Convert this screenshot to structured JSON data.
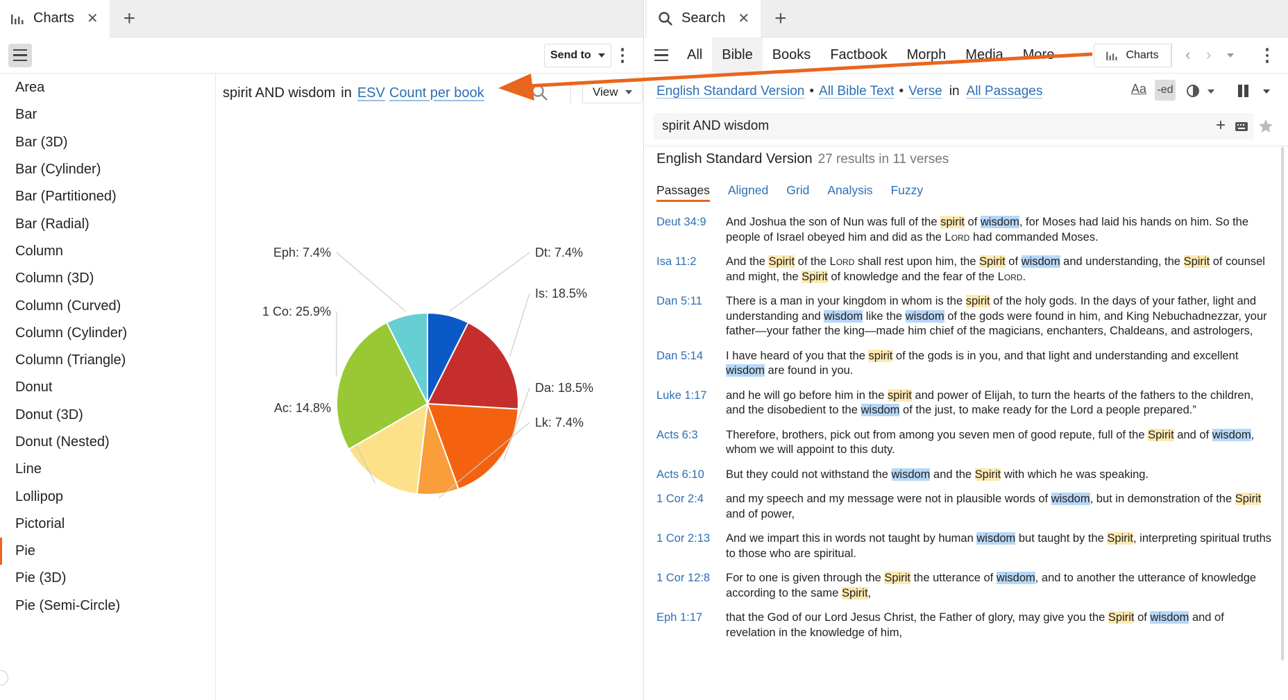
{
  "left_panel": {
    "tab_title": "Charts",
    "send_to_label": "Send to",
    "chart_types": [
      "Area",
      "Bar",
      "Bar (3D)",
      "Bar (Cylinder)",
      "Bar (Partitioned)",
      "Bar (Radial)",
      "Column",
      "Column (3D)",
      "Column (Curved)",
      "Column (Cylinder)",
      "Column (Triangle)",
      "Donut",
      "Donut (3D)",
      "Donut (Nested)",
      "Line",
      "Lollipop",
      "Pictorial",
      "Pie",
      "Pie (3D)",
      "Pie (Semi-Circle)"
    ],
    "selected_chart_type": "Pie",
    "query_text": "spirit AND wisdom",
    "query_in": "in",
    "query_version": "ESV",
    "query_mode": "Count per book",
    "view_label": "View"
  },
  "chart_data": {
    "type": "pie",
    "title": "",
    "slices": [
      {
        "label": "Dt: 7.4%",
        "category": "Dt",
        "value": 7.4,
        "color": "#0b59c7"
      },
      {
        "label": "Is: 18.5%",
        "category": "Is",
        "value": 18.5,
        "color": "#c62e2e"
      },
      {
        "label": "Da: 18.5%",
        "category": "Da",
        "value": 18.5,
        "color": "#f5620f"
      },
      {
        "label": "Lk: 7.4%",
        "category": "Lk",
        "value": 7.4,
        "color": "#f99e3a"
      },
      {
        "label": "Ac: 14.8%",
        "category": "Ac",
        "value": 14.8,
        "color": "#fde08a"
      },
      {
        "label": "1 Co: 25.9%",
        "category": "1 Co",
        "value": 25.9,
        "color": "#98c935"
      },
      {
        "label": "Eph: 7.4%",
        "category": "Eph",
        "value": 7.4,
        "color": "#66cfd3"
      }
    ]
  },
  "right_panel": {
    "tab_title": "Search",
    "nav_tabs": [
      "All",
      "Bible",
      "Books",
      "Factbook",
      "Morph",
      "Media",
      "More"
    ],
    "active_nav_tab": "Bible",
    "charts_button": "Charts",
    "options": {
      "version": "English Standard Version",
      "scope": "All Bible Text",
      "unit": "Verse",
      "in": "in",
      "range": "All Passages",
      "text_icon_label": "Aa"
    },
    "search_query": "spirit AND wisdom",
    "results_header": {
      "version": "English Standard Version",
      "count": "27 results in 11 verses"
    },
    "result_tabs": [
      "Passages",
      "Aligned",
      "Grid",
      "Analysis",
      "Fuzzy"
    ],
    "active_result_tab": "Passages",
    "results": [
      {
        "ref": "Deut 34:9",
        "parts": [
          [
            "t",
            "And Joshua the son of Nun was full of the "
          ],
          [
            "s",
            "spirit"
          ],
          [
            "t",
            " of "
          ],
          [
            "w",
            "wisdom"
          ],
          [
            "t",
            ", for Moses had laid his hands on him. So the people of Israel obeyed him and did as the "
          ],
          [
            "c",
            "Lord"
          ],
          [
            "t",
            " had commanded Moses."
          ]
        ]
      },
      {
        "ref": "Isa 11:2",
        "parts": [
          [
            "t",
            "And the "
          ],
          [
            "s",
            "Spirit"
          ],
          [
            "t",
            " of the "
          ],
          [
            "c",
            "Lord"
          ],
          [
            "t",
            " shall rest upon him, the "
          ],
          [
            "s",
            "Spirit"
          ],
          [
            "t",
            " of "
          ],
          [
            "w",
            "wisdom"
          ],
          [
            "t",
            " and understanding, the "
          ],
          [
            "s",
            "Spirit"
          ],
          [
            "t",
            " of counsel and might, the "
          ],
          [
            "s",
            "Spirit"
          ],
          [
            "t",
            " of knowledge and the fear of the "
          ],
          [
            "c",
            "Lord"
          ],
          [
            "t",
            "."
          ]
        ]
      },
      {
        "ref": "Dan 5:11",
        "parts": [
          [
            "t",
            "There is a man in your kingdom in whom is the "
          ],
          [
            "s",
            "spirit"
          ],
          [
            "t",
            " of the holy gods. In the days of your father, light and understanding and "
          ],
          [
            "w",
            "wisdom"
          ],
          [
            "t",
            " like the "
          ],
          [
            "w",
            "wisdom"
          ],
          [
            "t",
            " of the gods were found in him, and King Nebuchadnezzar, your father—your father the king—made him chief of the magicians, enchanters, Chaldeans, and astrologers,"
          ]
        ]
      },
      {
        "ref": "Dan 5:14",
        "parts": [
          [
            "t",
            "I have heard of you that the "
          ],
          [
            "s",
            "spirit"
          ],
          [
            "t",
            " of the gods is in you, and that light and understanding and excellent "
          ],
          [
            "w",
            "wisdom"
          ],
          [
            "t",
            " are found in you."
          ]
        ]
      },
      {
        "ref": "Luke 1:17",
        "parts": [
          [
            "t",
            "and he will go before him in the "
          ],
          [
            "s",
            "spirit"
          ],
          [
            "t",
            " and power of Elijah, to turn the hearts of the fathers to the children, and the disobedient to the "
          ],
          [
            "w",
            "wisdom"
          ],
          [
            "t",
            " of the just, to make ready for the Lord a people prepared.”"
          ]
        ]
      },
      {
        "ref": "Acts 6:3",
        "parts": [
          [
            "t",
            "Therefore, brothers, pick out from among you seven men of good repute, full of the "
          ],
          [
            "s",
            "Spirit"
          ],
          [
            "t",
            " and of "
          ],
          [
            "w",
            "wisdom"
          ],
          [
            "t",
            ", whom we will appoint to this duty."
          ]
        ]
      },
      {
        "ref": "Acts 6:10",
        "parts": [
          [
            "t",
            "But they could not withstand the "
          ],
          [
            "w",
            "wisdom"
          ],
          [
            "t",
            " and the "
          ],
          [
            "s",
            "Spirit"
          ],
          [
            "t",
            " with which he was speaking."
          ]
        ]
      },
      {
        "ref": "1 Cor 2:4",
        "parts": [
          [
            "t",
            "and my speech and my message were not in plausible words of "
          ],
          [
            "w",
            "wisdom"
          ],
          [
            "t",
            ", but in demonstration of the "
          ],
          [
            "s",
            "Spirit"
          ],
          [
            "t",
            " and of power,"
          ]
        ]
      },
      {
        "ref": "1 Cor 2:13",
        "parts": [
          [
            "t",
            "And we impart this in words not taught by human "
          ],
          [
            "w",
            "wisdom"
          ],
          [
            "t",
            " but taught by the "
          ],
          [
            "s",
            "Spirit"
          ],
          [
            "t",
            ", interpreting spiritual truths to those who are spiritual."
          ]
        ]
      },
      {
        "ref": "1 Cor 12:8",
        "parts": [
          [
            "t",
            "For to one is given through the "
          ],
          [
            "s",
            "Spirit"
          ],
          [
            "t",
            " the utterance of "
          ],
          [
            "w",
            "wisdom"
          ],
          [
            "t",
            ", and to another the utterance of knowledge according to the same "
          ],
          [
            "s",
            "Spirit"
          ],
          [
            "t",
            ","
          ]
        ]
      },
      {
        "ref": "Eph 1:17",
        "parts": [
          [
            "t",
            "that the God of our Lord Jesus Christ, the Father of glory, may give you the "
          ],
          [
            "s",
            "Spirit"
          ],
          [
            "t",
            " of "
          ],
          [
            "w",
            "wisdom"
          ],
          [
            "t",
            " and of revelation in the knowledge of him,"
          ]
        ]
      }
    ]
  },
  "colors": {
    "accent": "#e8661d",
    "link": "#2c6fb5",
    "spirit_highlight": "#fde9b0",
    "wisdom_highlight": "#b7d7f7"
  }
}
